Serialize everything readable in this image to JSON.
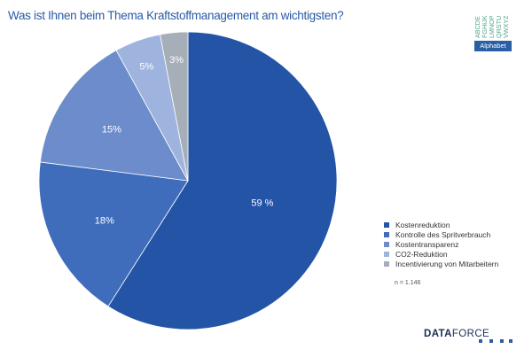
{
  "chart_data": {
    "type": "pie",
    "title": "Was ist Ihnen beim Thema Kraftstoffmanagement am wichtigsten?",
    "slices": [
      {
        "label": "Kostenreduktion",
        "value": 59,
        "value_label": "59 %",
        "color": "#2354a6"
      },
      {
        "label": "Kontrolle des Spritverbrauch",
        "value": 18,
        "value_label": "18%",
        "color": "#3f6dbc"
      },
      {
        "label": "Kostentransparenz",
        "value": 15,
        "value_label": "15%",
        "color": "#6d8ccb"
      },
      {
        "label": "CO2-Reduktion",
        "value": 5,
        "value_label": "5%",
        "color": "#9fb3df"
      },
      {
        "label": "Incentivierung von Mitarbeitern",
        "value": 3,
        "value_label": "3%",
        "color": "#a6aeb8"
      }
    ],
    "legend_position": "right",
    "start_angle": "12 o'clock",
    "direction": "clockwise"
  },
  "note": "n = 1.146",
  "logos": {
    "alphabet_label": "Alphabet",
    "alphabet_letters": [
      "ABCDE",
      "FGHIJK",
      "LMNOP",
      "QRSTU",
      "VWXYZ"
    ],
    "dataforce_bold": "DATA",
    "dataforce_light": "FORCE"
  },
  "colors": {
    "title": "#2a5aa6",
    "label_dark_slices": "#ffffff",
    "label_light_slices": "#ffffff"
  }
}
